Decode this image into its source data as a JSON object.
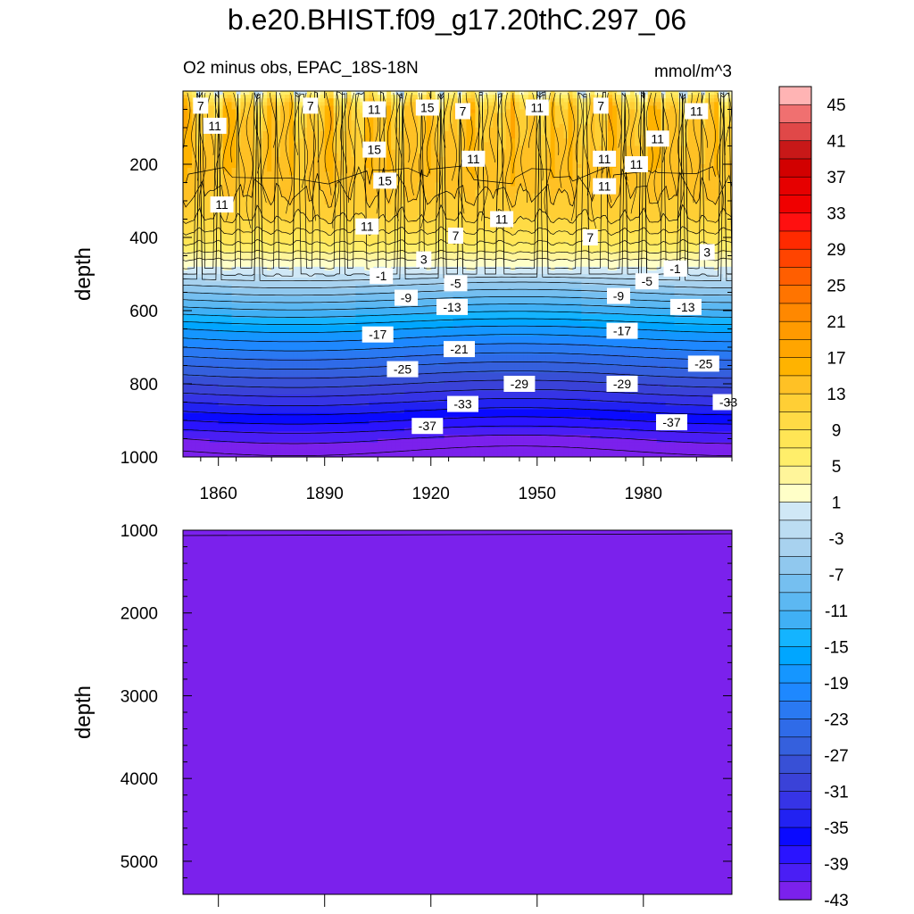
{
  "figure_title": "b.e20.BHIST.f09_g17.20thC.297_06",
  "colors": {
    "deep_fill": "#7b21ec",
    "contour_line": "#000000"
  },
  "chart_data": [
    {
      "type": "heatmap",
      "panel": "upper",
      "title": "O2 minus obs, EPAC_18S-18N",
      "units": "mmol/m^3",
      "xlabel": "",
      "ylabel": "depth",
      "xlim": [
        1850,
        2005
      ],
      "ylim": [
        1000,
        0
      ],
      "x_ticks": [
        1860,
        1890,
        1920,
        1950,
        1980
      ],
      "x_tick_labels": [
        "1860",
        "1890",
        "1920",
        "1950",
        "1980"
      ],
      "y_ticks": [
        200,
        400,
        600,
        800,
        1000
      ],
      "y_tick_labels": [
        "200",
        "400",
        "600",
        "800",
        "1000"
      ],
      "depth_profile": {
        "depth": [
          0,
          20,
          50,
          100,
          150,
          200,
          250,
          300,
          350,
          400,
          430,
          460,
          490,
          500,
          520,
          550,
          600,
          650,
          700,
          750,
          800,
          850,
          900,
          950,
          1000
        ],
        "value": [
          6,
          9,
          12,
          13,
          13.5,
          14,
          13.5,
          12.5,
          11,
          8,
          6,
          3,
          0.5,
          -1,
          -4,
          -7,
          -12,
          -17,
          -21,
          -25,
          -29,
          -33,
          -37,
          -41,
          -44
        ]
      },
      "contour_labels": [
        {
          "text": "7",
          "x": 1855,
          "d": 40
        },
        {
          "text": "11",
          "x": 1859,
          "d": 95
        },
        {
          "text": "7",
          "x": 1886,
          "d": 40
        },
        {
          "text": "11",
          "x": 1904,
          "d": 50
        },
        {
          "text": "15",
          "x": 1919,
          "d": 45
        },
        {
          "text": "7",
          "x": 1929,
          "d": 55
        },
        {
          "text": "11",
          "x": 1950,
          "d": 45
        },
        {
          "text": "7",
          "x": 1968,
          "d": 40
        },
        {
          "text": "11",
          "x": 1995,
          "d": 55
        },
        {
          "text": "11",
          "x": 1984,
          "d": 130
        },
        {
          "text": "15",
          "x": 1904,
          "d": 160
        },
        {
          "text": "11",
          "x": 1932,
          "d": 185
        },
        {
          "text": "11",
          "x": 1969,
          "d": 185
        },
        {
          "text": "11",
          "x": 1978,
          "d": 200
        },
        {
          "text": "15",
          "x": 1907,
          "d": 245
        },
        {
          "text": "11",
          "x": 1969,
          "d": 260
        },
        {
          "text": "11",
          "x": 1861,
          "d": 310
        },
        {
          "text": "11",
          "x": 1940,
          "d": 350
        },
        {
          "text": "11",
          "x": 1902,
          "d": 370
        },
        {
          "text": "7",
          "x": 1927,
          "d": 395
        },
        {
          "text": "7",
          "x": 1965,
          "d": 400
        },
        {
          "text": "3",
          "x": 1998,
          "d": 440
        },
        {
          "text": "3",
          "x": 1918,
          "d": 460
        },
        {
          "text": "-1",
          "x": 1989,
          "d": 485
        },
        {
          "text": "-1",
          "x": 1906,
          "d": 505
        },
        {
          "text": "-5",
          "x": 1927,
          "d": 525
        },
        {
          "text": "-5",
          "x": 1981,
          "d": 520
        },
        {
          "text": "-9",
          "x": 1913,
          "d": 565
        },
        {
          "text": "-9",
          "x": 1973,
          "d": 560
        },
        {
          "text": "-13",
          "x": 1926,
          "d": 590
        },
        {
          "text": "-13",
          "x": 1992,
          "d": 590
        },
        {
          "text": "-17",
          "x": 1905,
          "d": 665
        },
        {
          "text": "-17",
          "x": 1974,
          "d": 655
        },
        {
          "text": "-21",
          "x": 1928,
          "d": 705
        },
        {
          "text": "-25",
          "x": 1912,
          "d": 760
        },
        {
          "text": "-25",
          "x": 1997,
          "d": 745
        },
        {
          "text": "-29",
          "x": 1945,
          "d": 800
        },
        {
          "text": "-29",
          "x": 1974,
          "d": 800
        },
        {
          "text": "-33",
          "x": 1929,
          "d": 855
        },
        {
          "text": "-33",
          "x": 2004,
          "d": 850
        },
        {
          "text": "-37",
          "x": 1919,
          "d": 915
        },
        {
          "text": "-37",
          "x": 1988,
          "d": 905
        }
      ]
    },
    {
      "type": "heatmap",
      "panel": "lower",
      "title": "",
      "xlabel": "",
      "ylabel": "depth",
      "xlim": [
        1850,
        2005
      ],
      "ylim": [
        5400,
        1000
      ],
      "y_ticks": [
        1000,
        2000,
        3000,
        4000,
        5000
      ],
      "y_tick_labels": [
        "1000",
        "2000",
        "3000",
        "4000",
        "5000"
      ],
      "fill_level": "< -43"
    },
    {
      "type": "colorbar",
      "levels": [
        45,
        43,
        41,
        39,
        37,
        35,
        33,
        31,
        29,
        27,
        25,
        23,
        21,
        19,
        17,
        15,
        13,
        11,
        9,
        7,
        5,
        3,
        1,
        -1,
        -3,
        -5,
        -7,
        -9,
        -11,
        -13,
        -15,
        -17,
        -19,
        -21,
        -23,
        -25,
        -27,
        -29,
        -31,
        -33,
        -35,
        -37,
        -39,
        -41,
        -43
      ],
      "labels": [
        "45",
        "41",
        "37",
        "33",
        "29",
        "25",
        "21",
        "17",
        "13",
        "9",
        "5",
        "1",
        "-3",
        "-7",
        "-11",
        "-15",
        "-19",
        "-23",
        "-27",
        "-31",
        "-35",
        "-39",
        "-43"
      ],
      "colors": [
        "#ffb4b4",
        "#f07070",
        "#e04848",
        "#c81818",
        "#d20000",
        "#e60000",
        "#f00000",
        "#ff1010",
        "#ff2a00",
        "#ff4400",
        "#ff5e00",
        "#ff7400",
        "#ff8800",
        "#ff9a00",
        "#ffa500",
        "#ffb300",
        "#ffc125",
        "#ffcf35",
        "#ffdb45",
        "#ffe555",
        "#ffee6a",
        "#fff59a",
        "#ffffc8",
        "#d0e8f6",
        "#bcddf2",
        "#a8d2ef",
        "#90c8ee",
        "#75bff0",
        "#5cb8f2",
        "#40b0f5",
        "#14b4ff",
        "#00a6ff",
        "#1596ff",
        "#1e88ff",
        "#2a79f2",
        "#2f6be8",
        "#3560dd",
        "#3850d6",
        "#3a42d8",
        "#3634e6",
        "#2222f2",
        "#0a0aff",
        "#2a14ff",
        "#4a1ef5",
        "#7b21ec"
      ]
    }
  ]
}
